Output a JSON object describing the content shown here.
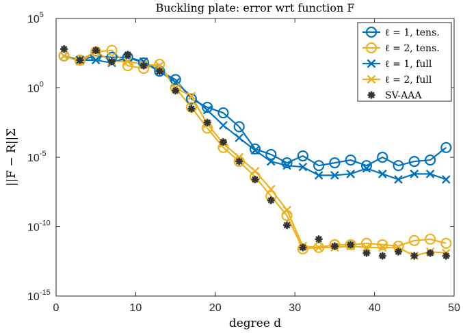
{
  "chart_data": {
    "type": "line",
    "title": "Buckling plate: error wrt function F",
    "xlabel": "degree d",
    "ylabel": "||F − R||Σ",
    "xlim": [
      0,
      50
    ],
    "ylim_log10": [
      -15,
      5
    ],
    "yscale": "log",
    "grid": false,
    "legend_position": "top-right",
    "x_ticks": [
      "0",
      "10",
      "20",
      "30",
      "40",
      "50"
    ],
    "y_ticks": [
      {
        "base": "10",
        "exp": "5"
      },
      {
        "base": "10",
        "exp": "0"
      },
      {
        "base": "10",
        "exp": "-5"
      },
      {
        "base": "10",
        "exp": "-10"
      },
      {
        "base": "10",
        "exp": "-15"
      }
    ],
    "series": [
      {
        "name": "ℓ = 1, tens.",
        "color": "#0072BD",
        "marker": "circle",
        "x": [
          1,
          3,
          5,
          7,
          9,
          11,
          13,
          15,
          17,
          19,
          21,
          23,
          25,
          27,
          29,
          31,
          33,
          35,
          37,
          39,
          41,
          43,
          45,
          47,
          49
        ],
        "log10_y": [
          2.3,
          2.0,
          2.3,
          2.2,
          2.2,
          1.8,
          1.2,
          0.6,
          -0.8,
          -1.4,
          -1.8,
          -2.8,
          -4.4,
          -4.8,
          -5.4,
          -4.9,
          -5.6,
          -5.4,
          -5.2,
          -5.6,
          -5.0,
          -5.6,
          -5.3,
          -5.2,
          -4.3
        ],
        "line": true
      },
      {
        "name": "ℓ = 2, tens.",
        "color": "#EDB120",
        "marker": "circle",
        "x": [
          1,
          3,
          5,
          7,
          9,
          11,
          13,
          15,
          17,
          19,
          21,
          23,
          25,
          27,
          29,
          31,
          33,
          35,
          37,
          39,
          41,
          43,
          45,
          47,
          49
        ],
        "log10_y": [
          2.3,
          2.0,
          2.6,
          2.7,
          1.6,
          1.4,
          1.7,
          0.0,
          -1.4,
          -2.9,
          -4.3,
          -5.3,
          -6.4,
          -7.8,
          -9.2,
          -11.6,
          -11.5,
          -11.3,
          -11.3,
          -11.2,
          -11.3,
          -11.4,
          -11.0,
          -10.9,
          -11.2
        ],
        "line": true
      },
      {
        "name": "ℓ = 1, full",
        "color": "#0072BD",
        "marker": "x",
        "x": [
          1,
          3,
          5,
          7,
          9,
          11,
          13,
          15,
          17,
          19,
          21,
          23,
          25,
          27,
          29,
          31,
          33,
          35,
          37,
          39,
          41,
          43,
          45,
          47,
          49
        ],
        "log10_y": [
          2.3,
          2.0,
          2.0,
          1.8,
          2.2,
          1.9,
          1.2,
          0.4,
          -0.6,
          -1.6,
          -2.7,
          -3.6,
          -4.5,
          -5.3,
          -5.6,
          -5.7,
          -6.3,
          -6.3,
          -6.2,
          -5.8,
          -6.2,
          -6.6,
          -6.2,
          -6.2,
          -6.6
        ],
        "line": true
      },
      {
        "name": "ℓ = 2, full",
        "color": "#EDB120",
        "marker": "x",
        "x": [
          1,
          3,
          5,
          7,
          9,
          11,
          13,
          15,
          17,
          19,
          21,
          23,
          25,
          27,
          29,
          31,
          33,
          35,
          37,
          39,
          41,
          43,
          45,
          47,
          49
        ],
        "log10_y": [
          2.3,
          1.9,
          2.6,
          1.9,
          1.9,
          1.7,
          1.6,
          0.0,
          -0.6,
          -2.6,
          -4.0,
          -5.0,
          -6.0,
          -7.3,
          -8.8,
          -11.4,
          -11.5,
          -11.5,
          -11.4,
          -11.5,
          -11.5,
          -11.5,
          -12.1,
          -11.8,
          -11.9
        ],
        "line": true
      },
      {
        "name": "SV-AAA",
        "color": "#333333",
        "marker": "star",
        "x": [
          1,
          3,
          5,
          7,
          9,
          11,
          13,
          15,
          17,
          19,
          21,
          23,
          25,
          27,
          29,
          31,
          33,
          35,
          37,
          39,
          41,
          43,
          45,
          47,
          49
        ],
        "log10_y": [
          2.8,
          2.0,
          2.7,
          1.9,
          2.4,
          1.6,
          1.2,
          -0.2,
          -1.5,
          -2.5,
          -3.9,
          -5.3,
          -6.6,
          -8.1,
          -9.9,
          -11.5,
          -10.9,
          -11.4,
          -11.3,
          -11.9,
          -12.1,
          -11.8,
          -12.1,
          -11.9,
          -12.1
        ],
        "line": false
      }
    ]
  }
}
